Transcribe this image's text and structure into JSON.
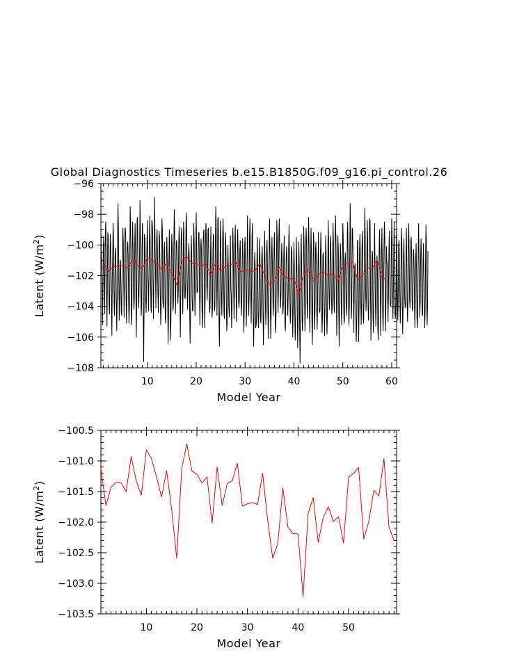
{
  "chart_data": [
    {
      "type": "line",
      "title": "Global Diagnostics Timeseries b.e15.B1850G.f09_g16.pi_control.26",
      "xlabel": "Model Year",
      "ylabel": "Latent (W/m",
      "ylabel_sup": "2",
      "ylabel_close": ")",
      "xlim": [
        0.5,
        61
      ],
      "ylim": [
        -108,
        -96
      ],
      "xticks": [
        10,
        20,
        30,
        40,
        50,
        60
      ],
      "yticks": [
        -108,
        -106,
        -104,
        -102,
        -100,
        -98,
        -96
      ],
      "grid": false,
      "series": [
        {
          "color": "#000000",
          "x_start": 0.5,
          "x_step": 0.0833333,
          "values": [
            -99.0,
            -100.5,
            -101.2,
            -102.3,
            -105.2,
            -103.0,
            -100.1,
            -99.4,
            -101.6,
            -104.5,
            -102.2,
            -99.0,
            -98.5,
            -100.8,
            -103.6,
            -105.3,
            -102.0,
            -99.2,
            -99.4,
            -101.3,
            -103.9,
            -104.5,
            -102.4,
            -99.3,
            -100.0,
            -101.5,
            -104.0,
            -105.9,
            -102.1,
            -100.6,
            -98.6,
            -99.5,
            -102.9,
            -104.6,
            -103.7,
            -100.2,
            -100.3,
            -101.5,
            -103.8,
            -105.6,
            -103.5,
            -99.7,
            -97.3,
            -98.8,
            -102.2,
            -104.9,
            -103.5,
            -101.0,
            -101.0,
            -102.4,
            -104.4,
            -104.6,
            -102.1,
            -100.6,
            -98.9,
            -99.9,
            -102.5,
            -104.7,
            -102.4,
            -98.9,
            -98.9,
            -99.5,
            -103.8,
            -105.1,
            -102.6,
            -100.1,
            -99.8,
            -100.6,
            -103.5,
            -105.1,
            -104.1,
            -100.3,
            -97.5,
            -98.9,
            -102.2,
            -105.2,
            -104.5,
            -100.2,
            -98.5,
            -100.2,
            -102.9,
            -104.2,
            -103.7,
            -99.9,
            -98.6,
            -100.6,
            -103.4,
            -106.0,
            -103.1,
            -98.4,
            -98.2,
            -101.0,
            -103.4,
            -104.1,
            -102.5,
            -100.6,
            -97.1,
            -99.4,
            -102.5,
            -104.6,
            -104.0,
            -100.2,
            -98.6,
            -99.8,
            -104.5,
            -107.6,
            -104.4,
            -99.3,
            -99.6,
            -100.7,
            -103.6,
            -104.4,
            -103.5,
            -99.9,
            -98.4,
            -101.2,
            -102.5,
            -104.3,
            -102.3,
            -100.0,
            -98.1,
            -100.0,
            -102.4,
            -104.2,
            -104.4,
            -98.4,
            -98.5,
            -99.1,
            -102.3,
            -104.8,
            -102.6,
            -100.1,
            -96.9,
            -100.2,
            -101.5,
            -104.1,
            -102.1,
            -99.5,
            -99.0,
            -100.9,
            -103.1,
            -104.4,
            -102.6,
            -99.1,
            -99.5,
            -101.4,
            -103.6,
            -105.2,
            -104.2,
            -100.0,
            -98.3,
            -99.1,
            -103.5,
            -104.1,
            -103.9,
            -100.3,
            -99.8,
            -101.9,
            -104.7,
            -105.1,
            -103.6,
            -100.3,
            -99.5,
            -101.0,
            -103.8,
            -106.4,
            -104.8,
            -101.0,
            -99.0,
            -101.2,
            -104.5,
            -106.2,
            -104.9,
            -101.0,
            -99.3,
            -100.0,
            -103.1,
            -104.3,
            -103.9,
            -100.3,
            -97.7,
            -98.6,
            -102.2,
            -104.5,
            -102.5,
            -99.8,
            -99.7,
            -100.5,
            -102.1,
            -103.8,
            -103.1,
            -100.1,
            -98.8,
            -99.7,
            -102.9,
            -106.0,
            -103.2,
            -99.8,
            -98.9,
            -99.6,
            -102.5,
            -104.5,
            -102.7,
            -98.5,
            -99.2,
            -101.4,
            -103.4,
            -103.5,
            -102.4,
            -98.5,
            -97.9,
            -100.3,
            -103.3,
            -104.2,
            -102.2,
            -100.6,
            -99.9,
            -100.9,
            -104.3,
            -106.4,
            -104.6,
            -101.4,
            -99.4,
            -100.7,
            -103.5,
            -104.3,
            -104.3,
            -100.8,
            -98.6,
            -99.7,
            -102.7,
            -104.6,
            -102.8,
            -100.6,
            -97.9,
            -100.3,
            -103.1,
            -103.1,
            -102.8,
            -100.3,
            -99.2,
            -99.2,
            -102.7,
            -105.2,
            -102.9,
            -100.1,
            -99.6,
            -100.6,
            -103.7,
            -105.4,
            -104.2,
            -99.9,
            -99.2,
            -99.0,
            -102.8,
            -105.4,
            -103.5,
            -99.4,
            -98.6,
            -99.7,
            -102.7,
            -103.6,
            -102.2,
            -99.0,
            -98.9,
            -100.7,
            -103.4,
            -104.4,
            -104.1,
            -101.0,
            -98.8,
            -101.3,
            -102.7,
            -104.7,
            -104.2,
            -100.5,
            -99.3,
            -99.5,
            -103.7,
            -104.3,
            -103.9,
            -100.2,
            -97.5,
            -98.5,
            -102.0,
            -104.6,
            -102.5,
            -98.3,
            -98.2,
            -100.6,
            -104.9,
            -106.6,
            -104.1,
            -99.8,
            -98.4,
            -101.2,
            -103.7,
            -104.6,
            -102.2,
            -99.5,
            -98.3,
            -99.7,
            -104.3,
            -104.8,
            -102.6,
            -100.8,
            -99.2,
            -100.2,
            -103.6,
            -105.6,
            -105.1,
            -101.4,
            -100.0,
            -101.7,
            -104.0,
            -104.7,
            -104.2,
            -101.1,
            -99.4,
            -102.7,
            -103.4,
            -105.4,
            -104.0,
            -100.3,
            -98.9,
            -100.3,
            -102.9,
            -104.8,
            -103.2,
            -99.6,
            -98.7,
            -101.6,
            -103.2,
            -105.0,
            -102.9,
            -99.9,
            -99.0,
            -100.8,
            -103.6,
            -104.1,
            -103.6,
            -100.4,
            -99.7,
            -101.2,
            -103.6,
            -104.6,
            -103.5,
            -101.1,
            -99.6,
            -100.6,
            -104.3,
            -105.7,
            -104.2,
            -100.0,
            -99.5,
            -101.8,
            -103.2,
            -105.3,
            -103.9,
            -100.5,
            -98.1,
            -100.7,
            -103.4,
            -104.6,
            -103.2,
            -99.3,
            -98.3,
            -100.3,
            -103.3,
            -105.1,
            -102.9,
            -99.4,
            -98.6,
            -100.4,
            -104.6,
            -106.6,
            -104.8,
            -101.2,
            -100.5,
            -101.7,
            -105.4,
            -105.3,
            -104.9,
            -101.3,
            -99.5,
            -101.8,
            -104.7,
            -105.4,
            -104.3,
            -100.9,
            -99.6,
            -101.9,
            -104.9,
            -105.1,
            -103.4,
            -100.7,
            -100.1,
            -101.4,
            -104.3,
            -106.5,
            -104.8,
            -101.1,
            -99.1,
            -101.4,
            -104.0,
            -105.2,
            -103.7,
            -100.2,
            -99.7,
            -101.6,
            -104.4,
            -106.1,
            -103.8,
            -100.6,
            -98.3,
            -100.2,
            -103.8,
            -106.1,
            -104.6,
            -101.0,
            -99.5,
            -101.1,
            -103.0,
            -104.6,
            -103.9,
            -100.3,
            -99.2,
            -101.3,
            -105.0,
            -105.7,
            -104.5,
            -101.2,
            -98.4,
            -99.6,
            -102.7,
            -104.4,
            -102.8,
            -99.4,
            -98.3,
            -100.1,
            -103.0,
            -104.1,
            -103.3,
            -101.2,
            -99.9,
            -101.0,
            -103.6,
            -104.5,
            -103.9,
            -100.7,
            -99.4,
            -102.3,
            -105.3,
            -105.6,
            -102.9,
            -100.8,
            -100.1,
            -100.8,
            -104.1,
            -104.6,
            -103.1,
            -100.1,
            -98.7,
            -100.7,
            -103.6,
            -105.1,
            -104.5,
            -100.9,
            -100.1,
            -100.4,
            -103.5,
            -106.0,
            -104.5,
            -101.6,
            -99.8,
            -101.6,
            -104.4,
            -106.2,
            -105.4,
            -102.1,
            -99.5,
            -101.2,
            -103.4,
            -106.7,
            -105.5,
            -101.9,
            -99.8,
            -101.6,
            -105.6,
            -107.7,
            -104.6,
            -100.6,
            -99.3,
            -101.9,
            -104.9,
            -105.6,
            -104.2,
            -101.5,
            -98.8,
            -100.1,
            -103.4,
            -105.6,
            -104.3,
            -99.8,
            -98.9,
            -100.1,
            -103.5,
            -104.8,
            -103.4,
            -100.0,
            -98.2,
            -100.1,
            -104.2,
            -105.7,
            -103.8,
            -100.8,
            -98.9,
            -100.7,
            -104.7,
            -106.5,
            -104.5,
            -101.4,
            -99.2,
            -99.9,
            -104.4,
            -105.5,
            -103.4,
            -100.3,
            -99.8,
            -101.4,
            -104.4,
            -105.5,
            -103.9,
            -101.4,
            -99.2,
            -101.5,
            -104.2,
            -104.4,
            -104.3,
            -100.6,
            -99.2,
            -100.5,
            -104.0,
            -105.7,
            -104.7,
            -100.7,
            -100.5,
            -101.8,
            -104.0,
            -105.9,
            -104.4,
            -101.4,
            -99.4,
            -100.7,
            -104.2,
            -105.8,
            -104.7,
            -102.3,
            -98.4,
            -99.7,
            -102.7,
            -104.2,
            -103.6,
            -100.0,
            -99.4,
            -101.0,
            -103.4,
            -104.5,
            -104.1,
            -100.7,
            -98.6,
            -99.9,
            -103.5,
            -104.4,
            -103.0,
            -99.8,
            -98.1,
            -99.5,
            -102.8,
            -105.9,
            -104.2,
            -100.8,
            -99.4,
            -100.3,
            -104.4,
            -106.6,
            -104.3,
            -101.5,
            -99.9,
            -100.7,
            -103.8,
            -105.2,
            -103.5,
            -101.0,
            -98.6,
            -99.5,
            -103.6,
            -105.1,
            -104.9,
            -101.1,
            -100.5,
            -101.7,
            -103.7,
            -104.6,
            -103.8,
            -99.1,
            -98.5,
            -101.2,
            -103.9,
            -105.2,
            -104.1,
            -100.5,
            -97.3,
            -99.6,
            -103.5,
            -104.8,
            -103.7,
            -98.9,
            -99.0,
            -100.5,
            -102.8,
            -105.7,
            -103.2,
            -101.6,
            -101.2,
            -101.7,
            -104.5,
            -106.3,
            -105.1,
            -102.4,
            -99.7,
            -99.7,
            -104.0,
            -106.3,
            -103.8,
            -100.3,
            -99.3,
            -100.6,
            -103.6,
            -105.2,
            -103.8,
            -100.1,
            -99.1,
            -100.4,
            -104.9,
            -105.1,
            -103.6,
            -100.1,
            -97.6,
            -99.6,
            -103.1,
            -104.3,
            -103.2,
            -100.5,
            -98.4,
            -99.9,
            -104.0,
            -104.9,
            -103.9,
            -99.4,
            -98.3,
            -98.4,
            -103.3,
            -106.2,
            -104.3,
            -101.7,
            -100.4,
            -100.6,
            -104.5,
            -105.7,
            -104.1,
            -101.2,
            -98.6,
            -101.2,
            -103.8,
            -105.3,
            -104.1,
            -101.2,
            -100.7,
            -101.6,
            -105.6,
            -106.2,
            -104.5,
            -100.8,
            -99.0,
            -100.6,
            -103.2,
            -105.9,
            -103.5,
            -99.9,
            -98.9,
            -101.6,
            -104.7,
            -105.6,
            -102.6,
            -100.2,
            -98.5,
            -99.5,
            -103.7,
            -105.6,
            -103.4,
            -100.1,
            -101.1,
            -101.2,
            -103.3,
            -105.0,
            -103.4,
            -100.7,
            -99.1,
            -100.9,
            -103.7,
            -104.0,
            -103.9,
            -100.8,
            -98.3,
            -99.5,
            -102.7,
            -104.8,
            -103.2,
            -100.5,
            -98.5,
            -100.9,
            -104.4,
            -104.8,
            -103.9,
            -101.3,
            -98.9,
            -100.7,
            -103.3,
            -104.9,
            -103.6,
            -100.0,
            -99.7,
            -101.0,
            -103.5,
            -105.1,
            -104.0,
            -100.8,
            -98.9,
            -100.2,
            -103.9,
            -105.8,
            -103.9,
            -100.6,
            -99.6,
            -101.9,
            -103.6,
            -104.1,
            -104.0,
            -101.1,
            -98.9,
            -100.9,
            -103.9,
            -105.0,
            -103.4,
            -99.6,
            -98.6,
            -101.2,
            -103.6,
            -104.1,
            -101.8,
            -99.7,
            -99.5,
            -100.9,
            -103.6,
            -104.3,
            -104.1,
            -100.3,
            -100.3,
            -101.5,
            -104.0,
            -105.4,
            -103.5,
            -100.8,
            -99.9,
            -101.8,
            -104.7,
            -105.4,
            -104.2,
            -100.6,
            -98.6,
            -100.7,
            -103.2,
            -104.7,
            -103.7,
            -100.8,
            -99.6,
            -100.7,
            -103.7,
            -104.5,
            -104.6,
            -101.2,
            -99.9,
            -101.8,
            -103.7,
            -105.4,
            -104.4,
            -101.3,
            -98.7,
            -99.7,
            -104.0,
            -105.2,
            -104.0,
            -100.4
          ]
        },
        {
          "color": "#ff0000",
          "x_start": 1,
          "x_step": 1,
          "values": [
            -101.12,
            -101.73,
            -101.43,
            -101.35,
            -101.36,
            -101.5,
            -100.93,
            -101.33,
            -101.56,
            -100.82,
            -100.96,
            -101.26,
            -101.59,
            -101.16,
            -101.79,
            -102.59,
            -101.12,
            -100.72,
            -101.16,
            -101.22,
            -101.36,
            -101.26,
            -102.02,
            -101.1,
            -101.73,
            -101.37,
            -101.32,
            -101.04,
            -101.74,
            -101.7,
            -101.68,
            -101.71,
            -101.2,
            -101.97,
            -102.59,
            -102.35,
            -101.44,
            -102.08,
            -102.19,
            -102.19,
            -103.22,
            -101.86,
            -101.6,
            -102.33,
            -101.92,
            -101.75,
            -101.99,
            -101.91,
            -102.34,
            -101.27,
            -101.2,
            -101.11,
            -102.28,
            -101.99,
            -101.48,
            -101.57,
            -100.96,
            -102.08,
            -102.3
          ]
        }
      ]
    },
    {
      "type": "line",
      "title": "",
      "xlabel": "Model Year",
      "ylabel": "Latent (W/m",
      "ylabel_sup": "2",
      "ylabel_close": ")",
      "xlim": [
        1,
        59.5
      ],
      "ylim": [
        -103.5,
        -100.5
      ],
      "xticks": [
        10,
        20,
        30,
        40,
        50
      ],
      "yticks": [
        -103.5,
        -103.0,
        -102.5,
        -102.0,
        -101.5,
        -101.0,
        -100.5
      ],
      "grid": false,
      "series": [
        {
          "color": "#ff0000",
          "x_start": 1,
          "x_step": 1,
          "values": [
            -101.12,
            -101.73,
            -101.43,
            -101.35,
            -101.36,
            -101.5,
            -100.93,
            -101.33,
            -101.56,
            -100.82,
            -100.96,
            -101.26,
            -101.59,
            -101.16,
            -101.79,
            -102.59,
            -101.12,
            -100.72,
            -101.16,
            -101.22,
            -101.36,
            -101.26,
            -102.02,
            -101.1,
            -101.73,
            -101.37,
            -101.32,
            -101.04,
            -101.74,
            -101.7,
            -101.68,
            -101.71,
            -101.2,
            -101.97,
            -102.59,
            -102.35,
            -101.44,
            -102.08,
            -102.19,
            -102.19,
            -103.22,
            -101.86,
            -101.6,
            -102.33,
            -101.92,
            -101.75,
            -101.99,
            -101.91,
            -102.34,
            -101.27,
            -101.2,
            -101.11,
            -102.28,
            -101.99,
            -101.48,
            -101.57,
            -100.96,
            -102.08,
            -102.3
          ]
        }
      ]
    }
  ]
}
